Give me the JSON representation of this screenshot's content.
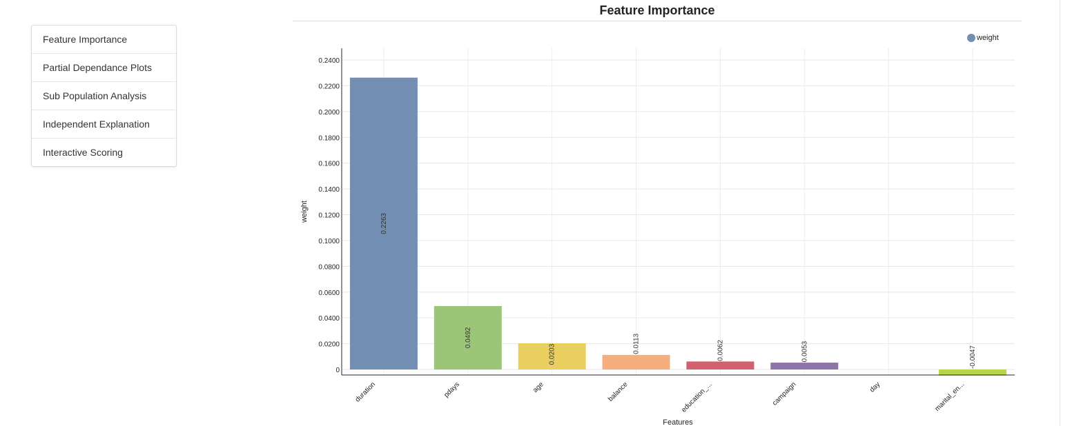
{
  "nav": {
    "items": [
      {
        "label": "Feature Importance"
      },
      {
        "label": "Partial Dependance Plots"
      },
      {
        "label": "Sub Population Analysis"
      },
      {
        "label": "Independent Explanation"
      },
      {
        "label": "Interactive Scoring"
      }
    ]
  },
  "page": {
    "title": "Feature Importance"
  },
  "chart_data": {
    "type": "bar",
    "categories": [
      "duration",
      "pdays",
      "age",
      "balance",
      "education_...",
      "campaign",
      "day",
      "marital_en..."
    ],
    "values": [
      0.2263,
      0.0492,
      0.0203,
      0.0113,
      0.0062,
      0.0053,
      0,
      -0.0047
    ],
    "data_labels": [
      "0.2263",
      "0.0492",
      "0.0203",
      "0.0113",
      "0.0062",
      "0.0053",
      "",
      "-0.0047"
    ],
    "colors": [
      "#728fb3",
      "#9cc677",
      "#e8cf5f",
      "#f7ae7e",
      "#d4606e",
      "#8d73a6",
      "#5ec0c0",
      "#b6d649"
    ],
    "yticks": [
      0,
      0.02,
      0.04,
      0.06,
      0.08,
      0.1,
      0.12,
      0.14,
      0.16,
      0.18,
      0.2,
      0.22,
      0.24
    ],
    "ytick_labels": [
      "0",
      "0.0200",
      "0.0400",
      "0.0600",
      "0.0800",
      "0.1000",
      "0.1200",
      "0.1400",
      "0.1600",
      "0.1800",
      "0.2000",
      "0.2200",
      "0.2400"
    ],
    "ylim": [
      -0.0047,
      0.249
    ],
    "xlabel": "Features",
    "ylabel": "weight",
    "legend": {
      "label": "weight",
      "color": "#728fb3",
      "position": "top-right"
    },
    "grid": true
  }
}
